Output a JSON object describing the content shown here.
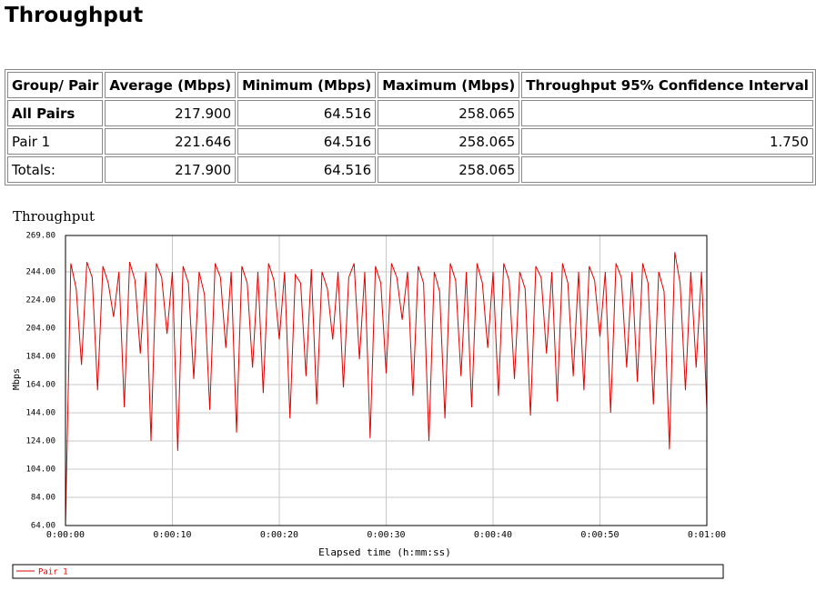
{
  "header": {
    "title": "Throughput"
  },
  "table": {
    "headers": [
      "Group/ Pair",
      "Average (Mbps)",
      "Minimum (Mbps)",
      "Maximum (Mbps)",
      "Throughput 95% Confidence Interval"
    ],
    "rows": [
      [
        "All Pairs",
        "217.900",
        "64.516",
        "258.065",
        ""
      ],
      [
        "Pair 1",
        "221.646",
        "64.516",
        "258.065",
        "1.750"
      ],
      [
        "Totals:",
        "217.900",
        "64.516",
        "258.065",
        ""
      ]
    ]
  },
  "chart_data": {
    "type": "line",
    "title": "Throughput",
    "x_label": "Elapsed time (h:mm:ss)",
    "y_label": "Mbps",
    "xlim": [
      0,
      60
    ],
    "xticks": [
      {
        "value": 0,
        "label": "0:00:00"
      },
      {
        "value": 10,
        "label": "0:00:10"
      },
      {
        "value": 20,
        "label": "0:00:20"
      },
      {
        "value": 30,
        "label": "0:00:30"
      },
      {
        "value": 40,
        "label": "0:00:40"
      },
      {
        "value": 50,
        "label": "0:00:50"
      },
      {
        "value": 60,
        "label": "0:01:00"
      }
    ],
    "ylim": [
      64,
      269.8
    ],
    "yticks": [
      {
        "value": 64,
        "label": "64.00"
      },
      {
        "value": 84,
        "label": "84.00"
      },
      {
        "value": 104,
        "label": "104.00"
      },
      {
        "value": 124,
        "label": "124.00"
      },
      {
        "value": 144,
        "label": "144.00"
      },
      {
        "value": 164,
        "label": "164.00"
      },
      {
        "value": 184,
        "label": "184.00"
      },
      {
        "value": 204,
        "label": "204.00"
      },
      {
        "value": 224,
        "label": "224.00"
      },
      {
        "value": 244,
        "label": "244.00"
      },
      {
        "value": 269.8,
        "label": "269.80"
      }
    ],
    "grid": true,
    "legend": "bottom",
    "x": [
      0,
      0.5,
      1,
      1.5,
      2,
      2.5,
      3,
      3.5,
      4,
      4.5,
      5,
      5.5,
      6,
      6.5,
      7,
      7.5,
      8,
      8.5,
      9,
      9.5,
      10,
      10.5,
      11,
      11.5,
      12,
      12.5,
      13,
      13.5,
      14,
      14.5,
      15,
      15.5,
      16,
      16.5,
      17,
      17.5,
      18,
      18.5,
      19,
      19.5,
      20,
      20.5,
      21,
      21.5,
      22,
      22.5,
      23,
      23.5,
      24,
      24.5,
      25,
      25.5,
      26,
      26.5,
      27,
      27.5,
      28,
      28.5,
      29,
      29.5,
      30,
      30.5,
      31,
      31.5,
      32,
      32.5,
      33,
      33.5,
      34,
      34.5,
      35,
      35.5,
      36,
      36.5,
      37,
      37.5,
      38,
      38.5,
      39,
      39.5,
      40,
      40.5,
      41,
      41.5,
      42,
      42.5,
      43,
      43.5,
      44,
      44.5,
      45,
      45.5,
      46,
      46.5,
      47,
      47.5,
      48,
      48.5,
      49,
      49.5,
      50,
      50.5,
      51,
      51.5,
      52,
      52.5,
      53,
      53.5,
      54,
      54.5,
      55,
      55.5,
      56,
      56.5,
      57,
      57.5,
      58,
      58.5,
      59,
      59.5,
      60
    ],
    "series": [
      {
        "name": "Pair 1",
        "color": "#e00000",
        "values": [
          64.5,
          250,
          232,
          178,
          251,
          240,
          160,
          248,
          236,
          212,
          244,
          148,
          251,
          238,
          186,
          244,
          124,
          250,
          240,
          200,
          244,
          117,
          248,
          236,
          168,
          244,
          228,
          146,
          250,
          240,
          190,
          244,
          130,
          248,
          236,
          176,
          244,
          158,
          250,
          238,
          196,
          244,
          140,
          242,
          236,
          170,
          246,
          150,
          244,
          232,
          196,
          244,
          162,
          240,
          250,
          182,
          244,
          126,
          248,
          236,
          172,
          250,
          240,
          210,
          244,
          156,
          248,
          236,
          124,
          244,
          230,
          140,
          250,
          238,
          170,
          244,
          148,
          250,
          236,
          190,
          244,
          156,
          250,
          238,
          168,
          244,
          232,
          142,
          248,
          240,
          186,
          244,
          152,
          250,
          236,
          170,
          244,
          160,
          248,
          238,
          198,
          244,
          144,
          250,
          240,
          176,
          244,
          166,
          250,
          236,
          150,
          244,
          230,
          118,
          258,
          236,
          160,
          244,
          176,
          244,
          146
        ]
      }
    ]
  }
}
